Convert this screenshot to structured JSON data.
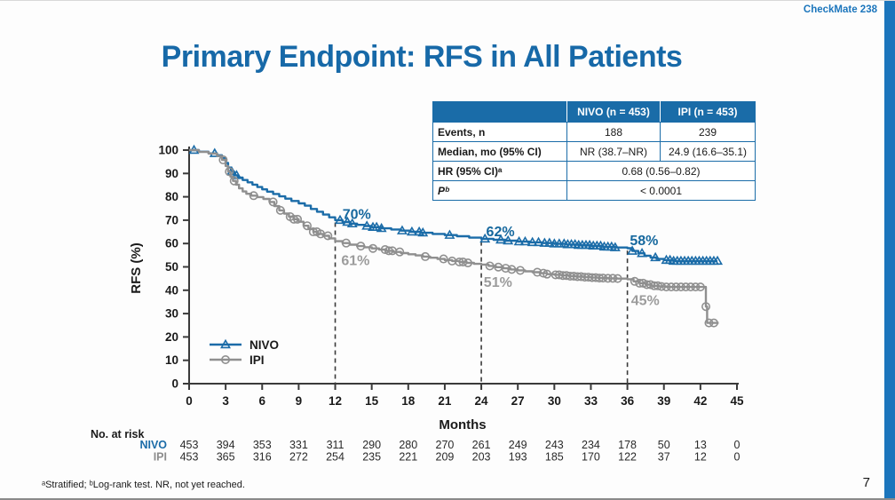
{
  "header": {
    "study": "CheckMate 238",
    "title": "Primary Endpoint: RFS in All Patients"
  },
  "results_table": {
    "col_headers": [
      "",
      "NIVO (n = 453)",
      "IPI (n = 453)"
    ],
    "rows": [
      {
        "label": "Events, n",
        "values": [
          "188",
          "239"
        ]
      },
      {
        "label": "Median, mo (95% CI)",
        "values": [
          "NR (38.7–NR)",
          "24.9 (16.6–35.1)"
        ]
      },
      {
        "label": "HR (95% CI)ᵃ",
        "values": [
          "0.68 (0.56–0.82)"
        ],
        "span": 2
      },
      {
        "label": "Pᵇ",
        "values": [
          "< 0.0001"
        ],
        "span": 2,
        "label_italic": true
      }
    ]
  },
  "chart_data": {
    "type": "line",
    "subtype": "kaplan-meier-step",
    "xlabel": "Months",
    "ylabel": "RFS (%)",
    "xlim": [
      0,
      45
    ],
    "ylim": [
      0,
      100
    ],
    "xticks": [
      0,
      3,
      6,
      9,
      12,
      15,
      18,
      21,
      24,
      27,
      30,
      33,
      36,
      39,
      42,
      45
    ],
    "yticks": [
      0,
      10,
      20,
      30,
      40,
      50,
      60,
      70,
      80,
      90,
      100
    ],
    "grid": false,
    "legend_position": "lower-left-inside",
    "series": [
      {
        "name": "NIVO",
        "color": "#1B6CA8",
        "marker": "triangle",
        "steps": [
          [
            0,
            100
          ],
          [
            0.8,
            99.3
          ],
          [
            1.6,
            98.6
          ],
          [
            2.3,
            97.8
          ],
          [
            2.7,
            96.5
          ],
          [
            3.0,
            94.5
          ],
          [
            3.2,
            92.5
          ],
          [
            3.45,
            90.8
          ],
          [
            3.7,
            89.2
          ],
          [
            4.0,
            88.2
          ],
          [
            4.4,
            87.2
          ],
          [
            4.8,
            86.2
          ],
          [
            5.2,
            85.2
          ],
          [
            5.6,
            84.2
          ],
          [
            6.0,
            83.2
          ],
          [
            6.4,
            82.2
          ],
          [
            6.9,
            81.2
          ],
          [
            7.4,
            80.2
          ],
          [
            7.9,
            79.2
          ],
          [
            8.4,
            78.2
          ],
          [
            9.0,
            77.2
          ],
          [
            9.5,
            76.2
          ],
          [
            10.0,
            74.8
          ],
          [
            10.5,
            73.6
          ],
          [
            11.0,
            72.4
          ],
          [
            11.5,
            71.2
          ],
          [
            12.0,
            70.0
          ],
          [
            12.6,
            69.2
          ],
          [
            13.2,
            68.5
          ],
          [
            13.8,
            68.0
          ],
          [
            14.4,
            67.5
          ],
          [
            15.0,
            67.0
          ],
          [
            15.8,
            66.5
          ],
          [
            16.6,
            66.0
          ],
          [
            17.4,
            65.5
          ],
          [
            18.2,
            65.0
          ],
          [
            19.0,
            64.6
          ],
          [
            20.0,
            64.1
          ],
          [
            21.0,
            63.6
          ],
          [
            22.0,
            63.1
          ],
          [
            23.0,
            62.5
          ],
          [
            24.0,
            62.0
          ],
          [
            25.0,
            61.6
          ],
          [
            26.0,
            61.2
          ],
          [
            27.0,
            60.8
          ],
          [
            28.0,
            60.5
          ],
          [
            29.0,
            60.2
          ],
          [
            30.0,
            59.9
          ],
          [
            31.0,
            59.6
          ],
          [
            32.0,
            59.3
          ],
          [
            33.0,
            59.0
          ],
          [
            34.0,
            58.6
          ],
          [
            35.0,
            58.3
          ],
          [
            36.0,
            58.0
          ],
          [
            36.4,
            56.8
          ],
          [
            36.9,
            55.8
          ],
          [
            37.4,
            54.8
          ],
          [
            37.9,
            54.0
          ],
          [
            38.4,
            53.4
          ],
          [
            39.0,
            52.9
          ],
          [
            39.8,
            52.5
          ],
          [
            43.4,
            52.5
          ]
        ],
        "censor_months": [
          0.4,
          2.1,
          3.5,
          3.9,
          12.4,
          13.0,
          13.4,
          14.6,
          15.1,
          15.4,
          15.8,
          17.5,
          18.3,
          18.9,
          19.2,
          21.4,
          24.3,
          25.6,
          26.2,
          27.1,
          27.6,
          28.2,
          28.7,
          29.2,
          29.6,
          30.0,
          30.4,
          30.8,
          31.1,
          31.4,
          31.7,
          32.0,
          32.3,
          32.6,
          32.9,
          33.2,
          33.5,
          33.8,
          34.1,
          34.4,
          34.7,
          35.0,
          36.4,
          37.2,
          38.3,
          39.2,
          39.5,
          39.8,
          40.1,
          40.4,
          40.7,
          41.0,
          41.3,
          41.6,
          41.9,
          42.2,
          42.5,
          42.8,
          43.1,
          43.4
        ],
        "landmark_values": {
          "12": "70%",
          "24": "62%",
          "36": "58%"
        }
      },
      {
        "name": "IPI",
        "color": "#8F8F8F",
        "marker": "circle",
        "steps": [
          [
            0,
            100
          ],
          [
            0.8,
            99.2
          ],
          [
            1.6,
            98.5
          ],
          [
            2.3,
            97.5
          ],
          [
            2.7,
            95.8
          ],
          [
            3.0,
            93.2
          ],
          [
            3.2,
            90.8
          ],
          [
            3.4,
            88.6
          ],
          [
            3.6,
            86.8
          ],
          [
            3.85,
            85.2
          ],
          [
            4.1,
            83.6
          ],
          [
            4.4,
            82.3
          ],
          [
            4.7,
            81.3
          ],
          [
            5.1,
            80.5
          ],
          [
            5.6,
            79.9
          ],
          [
            6.1,
            79.1
          ],
          [
            6.6,
            77.8
          ],
          [
            7.0,
            76.0
          ],
          [
            7.4,
            74.2
          ],
          [
            7.8,
            72.8
          ],
          [
            8.2,
            71.5
          ],
          [
            8.6,
            70.4
          ],
          [
            9.0,
            69.3
          ],
          [
            9.4,
            67.6
          ],
          [
            9.8,
            66.2
          ],
          [
            10.2,
            65.0
          ],
          [
            10.6,
            64.1
          ],
          [
            11.0,
            63.3
          ],
          [
            11.5,
            62.2
          ],
          [
            12.0,
            61.0
          ],
          [
            12.6,
            60.2
          ],
          [
            13.2,
            59.5
          ],
          [
            13.8,
            58.9
          ],
          [
            14.4,
            58.4
          ],
          [
            15.0,
            57.9
          ],
          [
            15.6,
            57.4
          ],
          [
            16.2,
            56.9
          ],
          [
            16.8,
            56.4
          ],
          [
            17.4,
            55.9
          ],
          [
            18.0,
            55.4
          ],
          [
            18.6,
            54.9
          ],
          [
            19.2,
            54.4
          ],
          [
            19.8,
            53.9
          ],
          [
            20.4,
            53.4
          ],
          [
            21.0,
            52.9
          ],
          [
            21.6,
            52.5
          ],
          [
            22.2,
            52.1
          ],
          [
            22.8,
            51.7
          ],
          [
            23.4,
            51.3
          ],
          [
            24.0,
            51.0
          ],
          [
            24.6,
            50.4
          ],
          [
            25.2,
            49.9
          ],
          [
            25.8,
            49.4
          ],
          [
            26.4,
            48.9
          ],
          [
            27.0,
            48.5
          ],
          [
            27.6,
            48.1
          ],
          [
            28.2,
            47.7
          ],
          [
            28.8,
            47.3
          ],
          [
            29.4,
            46.9
          ],
          [
            30.0,
            46.6
          ],
          [
            30.6,
            46.3
          ],
          [
            31.2,
            46.0
          ],
          [
            31.8,
            45.8
          ],
          [
            32.4,
            45.6
          ],
          [
            33.0,
            45.4
          ],
          [
            33.6,
            45.2
          ],
          [
            34.4,
            45.1
          ],
          [
            35.2,
            45.0
          ],
          [
            36.0,
            44.7
          ],
          [
            36.5,
            43.8
          ],
          [
            37.0,
            43.0
          ],
          [
            37.5,
            42.4
          ],
          [
            38.0,
            41.9
          ],
          [
            38.6,
            41.6
          ],
          [
            39.2,
            41.4
          ],
          [
            42.35,
            41.4
          ],
          [
            42.45,
            33.0
          ],
          [
            42.55,
            26.0
          ],
          [
            43.5,
            26.0
          ]
        ],
        "censor_months": [
          2.8,
          3.3,
          3.7,
          5.3,
          6.9,
          7.5,
          8.3,
          8.6,
          8.9,
          9.7,
          10.2,
          10.5,
          10.8,
          11.4,
          12.9,
          14.1,
          15.1,
          16.1,
          16.4,
          16.7,
          17.3,
          19.4,
          20.9,
          21.6,
          22.2,
          22.5,
          22.9,
          24.7,
          25.4,
          26.0,
          26.5,
          27.2,
          28.6,
          29.1,
          29.4,
          30.1,
          30.4,
          30.7,
          31.0,
          31.3,
          31.6,
          31.9,
          32.2,
          32.5,
          32.8,
          33.1,
          33.4,
          33.7,
          34.0,
          34.4,
          34.8,
          35.2,
          36.6,
          37.0,
          37.3,
          37.6,
          37.9,
          38.2,
          38.5,
          38.8,
          39.2,
          39.6,
          40.0,
          40.4,
          40.8,
          41.2,
          41.6,
          42.0,
          42.45,
          42.7,
          43.1
        ],
        "landmark_values": {
          "12": "61%",
          "24": "51%",
          "36": "45%"
        }
      }
    ],
    "dashed_reference_lines": [
      {
        "month": 12,
        "from_pct": 69
      },
      {
        "month": 24,
        "from_pct": 61
      },
      {
        "month": 36,
        "from_pct": 57
      }
    ],
    "annotations": [
      {
        "text": "70%",
        "month": 12.6,
        "pct": 70.5,
        "color": "#16689E"
      },
      {
        "text": "61%",
        "month": 12.5,
        "pct": 50.7,
        "color": "#9C9C9C"
      },
      {
        "text": "62%",
        "month": 24.4,
        "pct": 63.1,
        "color": "#16689E"
      },
      {
        "text": "51%",
        "month": 24.2,
        "pct": 41.4,
        "color": "#9C9C9C"
      },
      {
        "text": "58%",
        "month": 36.2,
        "pct": 59.3,
        "color": "#16689E"
      },
      {
        "text": "45%",
        "month": 36.3,
        "pct": 33.6,
        "color": "#9C9C9C"
      }
    ],
    "no_at_risk": {
      "title": "No. at risk",
      "rows": [
        {
          "label": "NIVO",
          "color": "#1B6CA8",
          "values": [
            453,
            394,
            353,
            331,
            311,
            290,
            280,
            270,
            261,
            249,
            243,
            234,
            178,
            50,
            13,
            0
          ]
        },
        {
          "label": "IPI",
          "color": "#8C8C8C",
          "values": [
            453,
            365,
            316,
            272,
            254,
            235,
            221,
            209,
            203,
            193,
            185,
            170,
            122,
            37,
            12,
            0
          ]
        }
      ]
    }
  },
  "footnote": "ᵃStratified; ᵇLog-rank test. NR, not yet reached.",
  "page_number": "7",
  "colors": {
    "accent_blue": "#1769A8",
    "brand_blue": "#1B75BC",
    "table_header_bg": "#1A6CA8",
    "axis": "#3A3A3A"
  }
}
